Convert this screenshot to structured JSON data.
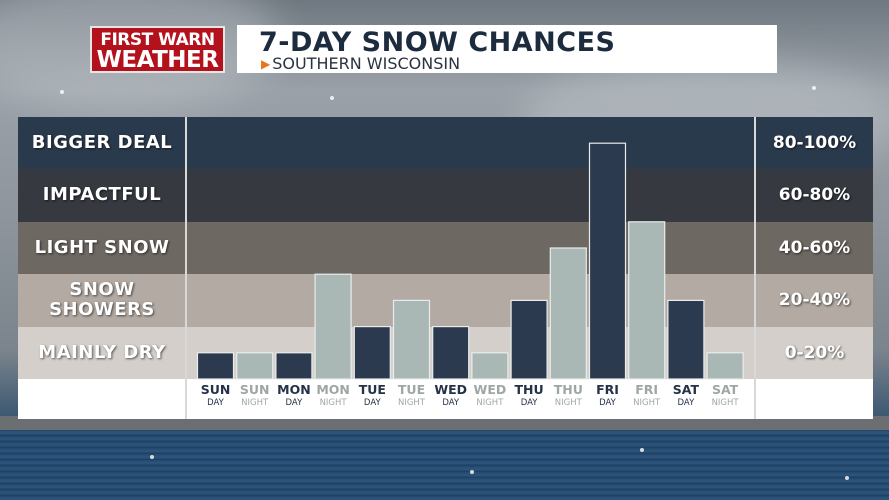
{
  "logo": {
    "line1a": "FIRST",
    "line1b": "WARN",
    "line2": "WEATHER"
  },
  "header": {
    "title": "7-DAY SNOW CHANCES",
    "subtitle": "SOUTHERN WISCONSIN"
  },
  "colors": {
    "day_bar": "#2b3a4e",
    "night_bar": "#a9b8b5",
    "logo_red": "#b3121c",
    "accent_orange": "#e8761e"
  },
  "bands": [
    {
      "label": "BIGGER DEAL",
      "range": "80-100%",
      "color": "#2a3a4d"
    },
    {
      "label": "IMPACTFUL",
      "range": "60-80%",
      "color": "#363a40"
    },
    {
      "label": "LIGHT SNOW",
      "range": "40-60%",
      "color": "#6e6863"
    },
    {
      "label": "SNOW\nSHOWERS",
      "range": "20-40%",
      "color": "#b2aaa3"
    },
    {
      "label": "MAINLY DRY",
      "range": "0-20%",
      "color": "#d4cfca"
    }
  ],
  "chart_data": {
    "type": "bar",
    "y_range": [
      0,
      100
    ],
    "categories": [
      {
        "day": "SUN",
        "part": "DAY",
        "value": 10
      },
      {
        "day": "SUN",
        "part": "NIGHT",
        "value": 10
      },
      {
        "day": "MON",
        "part": "DAY",
        "value": 10
      },
      {
        "day": "MON",
        "part": "NIGHT",
        "value": 40
      },
      {
        "day": "TUE",
        "part": "DAY",
        "value": 20
      },
      {
        "day": "TUE",
        "part": "NIGHT",
        "value": 30
      },
      {
        "day": "WED",
        "part": "DAY",
        "value": 20
      },
      {
        "day": "WED",
        "part": "NIGHT",
        "value": 10
      },
      {
        "day": "THU",
        "part": "DAY",
        "value": 30
      },
      {
        "day": "THU",
        "part": "NIGHT",
        "value": 50
      },
      {
        "day": "FRI",
        "part": "DAY",
        "value": 90
      },
      {
        "day": "FRI",
        "part": "NIGHT",
        "value": 60
      },
      {
        "day": "SAT",
        "part": "DAY",
        "value": 30
      },
      {
        "day": "SAT",
        "part": "NIGHT",
        "value": 10
      }
    ]
  }
}
